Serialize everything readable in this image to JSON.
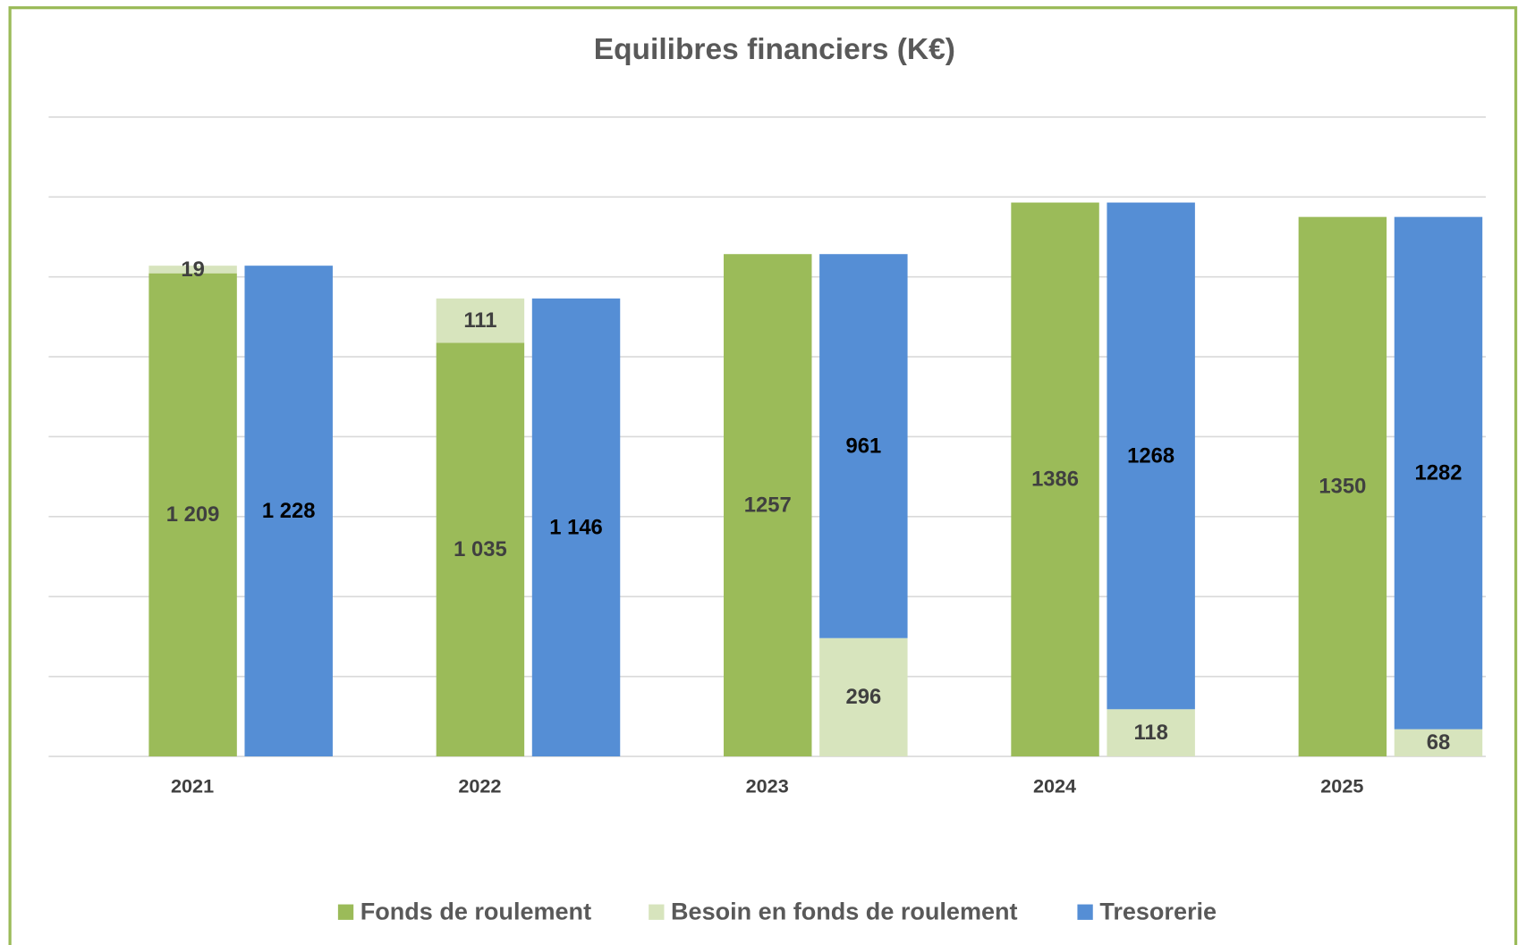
{
  "chart_data": {
    "type": "bar",
    "title": "Equilibres financiers (K€)",
    "categories": [
      "2021",
      "2022",
      "2023",
      "2024",
      "2025"
    ],
    "series": [
      {
        "name": "Fonds de roulement",
        "color": "#9bbb59",
        "values": [
          1209,
          1035,
          1257,
          1386,
          1350
        ],
        "value_labels": [
          "1 209",
          "1 035",
          "1257",
          "1386",
          "1350"
        ],
        "stack": [
          "left",
          "left",
          "left",
          "left",
          "left"
        ]
      },
      {
        "name": "Besoin en fonds de roulement",
        "color": "#d7e4bd",
        "values": [
          19,
          111,
          296,
          118,
          68
        ],
        "stack": [
          "left",
          "left",
          "right",
          "right",
          "right"
        ]
      },
      {
        "name": "Tresorerie",
        "color": "#558ed5",
        "values": [
          1228,
          1146,
          961,
          1268,
          1282
        ],
        "value_labels": [
          "1 228",
          "1 146",
          "961",
          "1268",
          "1282"
        ],
        "stack": [
          "right",
          "right",
          "right",
          "right",
          "right"
        ]
      }
    ],
    "ylim": [
      0,
      1600
    ],
    "yticks": [
      0,
      200,
      400,
      600,
      800,
      1000,
      1200,
      1400,
      1600
    ],
    "grid": true,
    "legend": "bottom"
  }
}
